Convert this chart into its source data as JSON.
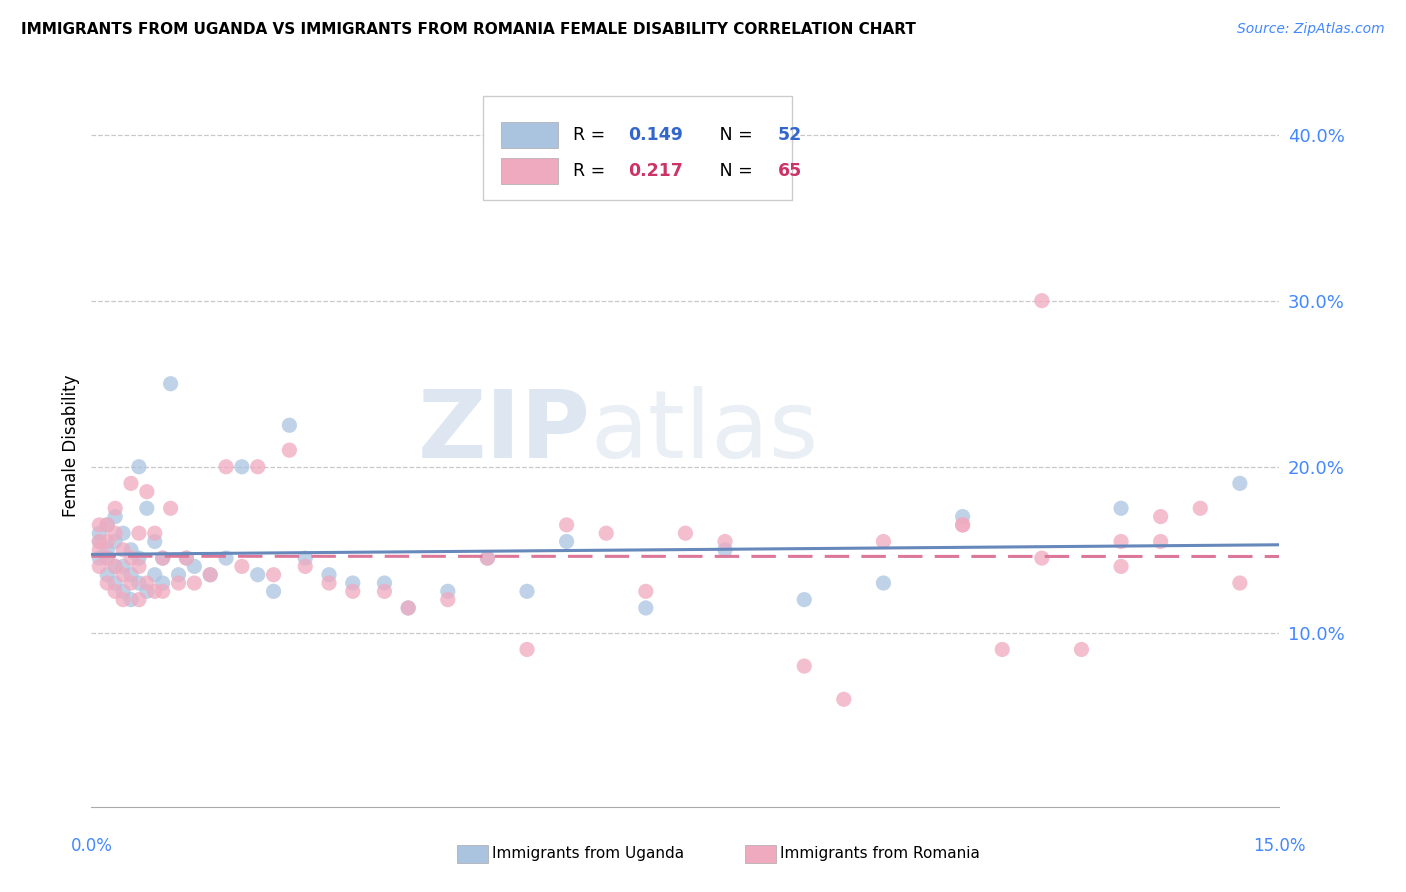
{
  "title": "IMMIGRANTS FROM UGANDA VS IMMIGRANTS FROM ROMANIA FEMALE DISABILITY CORRELATION CHART",
  "source": "Source: ZipAtlas.com",
  "ylabel": "Female Disability",
  "ylabel_right_vals": [
    0.1,
    0.2,
    0.3,
    0.4
  ],
  "xlim": [
    0.0,
    0.15
  ],
  "ylim": [
    -0.005,
    0.43
  ],
  "watermark_zip": "ZIP",
  "watermark_atlas": "atlas",
  "color_uganda": "#aac4e0",
  "color_romania": "#f0aabf",
  "trendline_uganda_color": "#6688bb",
  "trendline_romania_color": "#dd7799",
  "uganda_x": [
    0.001,
    0.001,
    0.001,
    0.002,
    0.002,
    0.002,
    0.002,
    0.003,
    0.003,
    0.003,
    0.003,
    0.004,
    0.004,
    0.004,
    0.005,
    0.005,
    0.005,
    0.006,
    0.006,
    0.006,
    0.007,
    0.007,
    0.008,
    0.008,
    0.009,
    0.009,
    0.01,
    0.011,
    0.012,
    0.013,
    0.015,
    0.017,
    0.019,
    0.021,
    0.023,
    0.025,
    0.027,
    0.03,
    0.033,
    0.037,
    0.04,
    0.045,
    0.05,
    0.055,
    0.06,
    0.07,
    0.08,
    0.09,
    0.1,
    0.11,
    0.13,
    0.145
  ],
  "uganda_y": [
    0.145,
    0.155,
    0.16,
    0.135,
    0.145,
    0.15,
    0.165,
    0.13,
    0.14,
    0.155,
    0.17,
    0.125,
    0.14,
    0.16,
    0.12,
    0.135,
    0.15,
    0.13,
    0.145,
    0.2,
    0.125,
    0.175,
    0.135,
    0.155,
    0.13,
    0.145,
    0.25,
    0.135,
    0.145,
    0.14,
    0.135,
    0.145,
    0.2,
    0.135,
    0.125,
    0.225,
    0.145,
    0.135,
    0.13,
    0.13,
    0.115,
    0.125,
    0.145,
    0.125,
    0.155,
    0.115,
    0.15,
    0.12,
    0.13,
    0.17,
    0.175,
    0.19
  ],
  "romania_x": [
    0.001,
    0.001,
    0.001,
    0.001,
    0.002,
    0.002,
    0.002,
    0.002,
    0.003,
    0.003,
    0.003,
    0.003,
    0.004,
    0.004,
    0.004,
    0.005,
    0.005,
    0.005,
    0.006,
    0.006,
    0.006,
    0.007,
    0.007,
    0.008,
    0.008,
    0.009,
    0.009,
    0.01,
    0.011,
    0.012,
    0.013,
    0.015,
    0.017,
    0.019,
    0.021,
    0.023,
    0.025,
    0.027,
    0.03,
    0.033,
    0.037,
    0.04,
    0.045,
    0.05,
    0.055,
    0.06,
    0.065,
    0.07,
    0.075,
    0.08,
    0.09,
    0.095,
    0.1,
    0.11,
    0.12,
    0.13,
    0.135,
    0.14,
    0.145,
    0.11,
    0.115,
    0.12,
    0.125,
    0.13,
    0.135
  ],
  "romania_y": [
    0.14,
    0.15,
    0.155,
    0.165,
    0.13,
    0.145,
    0.155,
    0.165,
    0.125,
    0.14,
    0.16,
    0.175,
    0.12,
    0.135,
    0.15,
    0.13,
    0.145,
    0.19,
    0.12,
    0.14,
    0.16,
    0.13,
    0.185,
    0.125,
    0.16,
    0.125,
    0.145,
    0.175,
    0.13,
    0.145,
    0.13,
    0.135,
    0.2,
    0.14,
    0.2,
    0.135,
    0.21,
    0.14,
    0.13,
    0.125,
    0.125,
    0.115,
    0.12,
    0.145,
    0.09,
    0.165,
    0.16,
    0.125,
    0.16,
    0.155,
    0.08,
    0.06,
    0.155,
    0.165,
    0.3,
    0.155,
    0.17,
    0.175,
    0.13,
    0.165,
    0.09,
    0.145,
    0.09,
    0.14,
    0.155
  ]
}
